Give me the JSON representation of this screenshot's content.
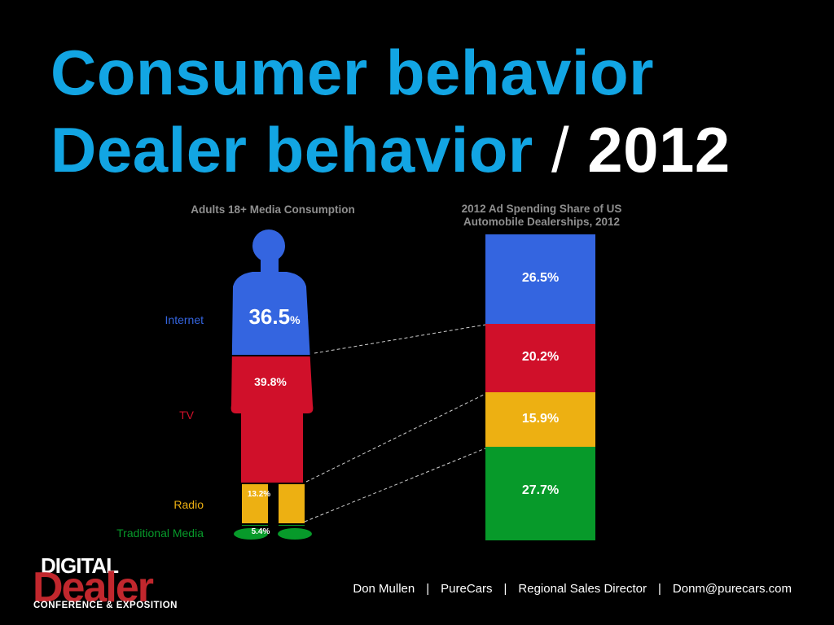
{
  "title": {
    "line1": "Consumer behavior",
    "line2_main": "Dealer behavior",
    "line2_sep": " / ",
    "line2_year": "2012"
  },
  "colors": {
    "internet": "#3465e0",
    "tv": "#d0102a",
    "radio": "#edb012",
    "traditional": "#079a2a",
    "title_blue": "#12a5e3"
  },
  "chart_data": [
    {
      "type": "bar",
      "title": "Adults 18+ Media Consumption",
      "categories": [
        "Internet",
        "TV",
        "Radio",
        "Traditional Media"
      ],
      "values": [
        36.5,
        39.8,
        13.2,
        5.4
      ],
      "value_labels": [
        "36.5",
        "39.8%",
        "13.2%",
        "5.4%"
      ],
      "value_suffix_first": "%",
      "stacked": true
    },
    {
      "type": "bar",
      "title": "2012 Ad Spending Share of US Automobile Dealerships, 2012",
      "title_line1": "2012 Ad Spending Share of US",
      "title_line2": "Automobile Dealerships, 2012",
      "categories": [
        "Internet",
        "TV",
        "Radio",
        "Traditional Media"
      ],
      "values": [
        26.5,
        20.2,
        15.9,
        27.7
      ],
      "value_labels": [
        "26.5%",
        "20.2%",
        "15.9%",
        "27.7%"
      ],
      "stacked": true
    }
  ],
  "footer": {
    "name": "Don Mullen",
    "company": "PureCars",
    "role": "Regional Sales Director",
    "email": "Donm@purecars.com",
    "separator": "|"
  },
  "logo": {
    "digital": "DIGITAL",
    "dealer": "Dealer",
    "subtitle": "CONFERENCE & EXPOSITION"
  }
}
